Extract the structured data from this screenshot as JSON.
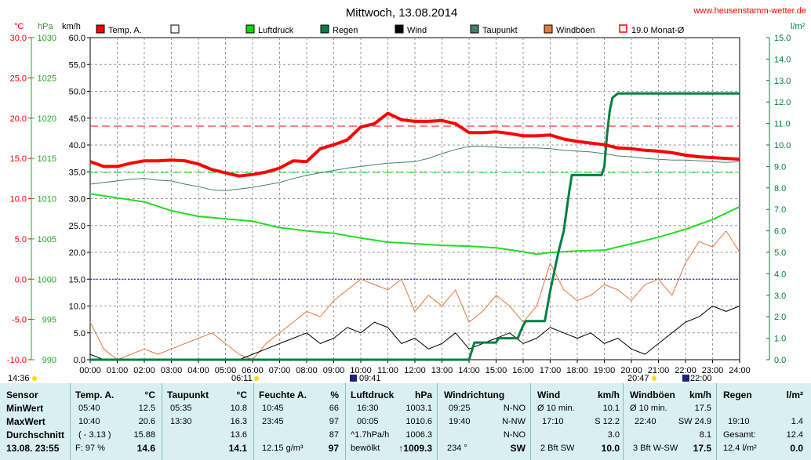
{
  "header": {
    "title": "Mittwoch, 13.08.2014",
    "website": "www.heusenstamm-wetter.de"
  },
  "units": {
    "temp": "°C",
    "pressure": "hPa",
    "wind": "km/h",
    "rain": "l/m²"
  },
  "legend": [
    {
      "label": "Temp. A.",
      "color": "#ff0000",
      "type": "box"
    },
    {
      "label": "",
      "color": "#ffffff",
      "type": "box"
    },
    {
      "label": "Luftdruck",
      "color": "#00dd00",
      "type": "box"
    },
    {
      "label": "Regen",
      "color": "#008040",
      "type": "box"
    },
    {
      "label": "Wind",
      "color": "#000000",
      "type": "box"
    },
    {
      "label": "Taupunkt",
      "color": "#40806f",
      "type": "box"
    },
    {
      "label": "Windböen",
      "color": "#e8773a",
      "type": "box"
    },
    {
      "label": "19.0 Monat-Ø",
      "color": "#ff0000",
      "type": "outline"
    }
  ],
  "markers": {
    "sunrise": "06:11",
    "sunset": "20:47",
    "moonrise": "09:41",
    "moonset": "22:00",
    "time_left": "14:36"
  },
  "colors": {
    "temp": "#ff0000",
    "pressure": "#22dd22",
    "rain": "#008040",
    "wind": "#000000",
    "dew": "#40806f",
    "gust": "#e8773a",
    "accent_left": "#ff0000",
    "accent_pressure": "#22aa22",
    "accent_rain": "#008040",
    "panel": "#d9f0f3"
  },
  "chart_data": {
    "type": "line",
    "title": "Mittwoch, 13.08.2014",
    "x_ticks": [
      "00:00",
      "01:00",
      "02:00",
      "03:00",
      "04:00",
      "05:00",
      "06:00",
      "07:00",
      "08:00",
      "09:00",
      "10:00",
      "11:00",
      "12:00",
      "13:00",
      "14:00",
      "15:00",
      "16:00",
      "17:00",
      "18:00",
      "19:00",
      "20:00",
      "21:00",
      "22:00",
      "23:00",
      "24:00"
    ],
    "axes": {
      "temp": {
        "unit": "°C",
        "ylim": [
          -10,
          30
        ],
        "ticks": [
          "30.0",
          "25.0",
          "20.0",
          "15.0",
          "10.0",
          "5.0",
          "0.0",
          "-5.0",
          "-10.0"
        ]
      },
      "pressure": {
        "unit": "hPa",
        "ylim": [
          990,
          1030
        ],
        "ticks": [
          "1030",
          "1025",
          "1020",
          "1015",
          "1010",
          "1005",
          "1000",
          "995",
          "990"
        ]
      },
      "wind": {
        "unit": "km/h",
        "ylim": [
          0,
          60
        ],
        "ticks": [
          "60.0",
          "55.0",
          "50.0",
          "45.0",
          "40.0",
          "35.0",
          "30.0",
          "25.0",
          "20.0",
          "15.0",
          "10.0",
          "5.0",
          "0.0"
        ]
      },
      "rain": {
        "unit": "l/m²",
        "ylim": [
          0,
          15
        ],
        "ticks": [
          "15.0",
          "14.0",
          "13.0",
          "12.0",
          "11.0",
          "10.0",
          "9.0",
          "8.0",
          "7.0",
          "6.0",
          "5.0",
          "4.0",
          "3.0",
          "2.0",
          "1.0",
          "0.0"
        ]
      }
    },
    "reference_lines": [
      {
        "name": "19.0 Monat-Ø",
        "axis": "temp",
        "value": 19.0,
        "style": "dashed",
        "color": "#ff0000"
      },
      {
        "axis": "pressure",
        "value": 1013.25,
        "style": "dashed",
        "color": "#22dd22"
      },
      {
        "axis": "temp",
        "value": 0.0,
        "style": "dotted",
        "color": "#0000ff"
      }
    ],
    "series": [
      {
        "name": "Temp. A.",
        "axis": "temp",
        "color": "#ff0000",
        "x": [
          0,
          0.5,
          1,
          1.5,
          2,
          2.5,
          3,
          3.5,
          4,
          4.5,
          5,
          5.5,
          6,
          6.5,
          7,
          7.5,
          8,
          8.5,
          9,
          9.5,
          10,
          10.5,
          11,
          11.5,
          12,
          12.5,
          13,
          13.5,
          14,
          14.5,
          15,
          15.5,
          16,
          16.5,
          17,
          17.5,
          18,
          18.5,
          19,
          19.5,
          20,
          20.5,
          21,
          21.5,
          22,
          22.5,
          23,
          23.5,
          24
        ],
        "values": [
          14.6,
          14.0,
          14.0,
          14.4,
          14.7,
          14.7,
          14.8,
          14.7,
          14.3,
          13.6,
          13.2,
          12.8,
          13.0,
          13.3,
          13.8,
          14.7,
          14.6,
          16.2,
          16.7,
          17.3,
          18.9,
          19.3,
          20.6,
          19.8,
          19.6,
          19.6,
          19.7,
          19.3,
          18.2,
          18.2,
          18.3,
          18.1,
          17.8,
          17.8,
          17.9,
          17.4,
          17.1,
          16.9,
          16.7,
          16.3,
          16.2,
          16.0,
          15.9,
          15.7,
          15.4,
          15.2,
          15.1,
          15.0,
          14.9
        ]
      },
      {
        "name": "Taupunkt",
        "axis": "temp",
        "color": "#40806f",
        "x": [
          0,
          0.5,
          1,
          1.5,
          2,
          2.5,
          3,
          3.5,
          4,
          4.5,
          5,
          5.5,
          6,
          6.5,
          7,
          7.5,
          8,
          8.5,
          9,
          9.5,
          10,
          10.5,
          11,
          11.5,
          12,
          12.5,
          13,
          13.5,
          14,
          14.5,
          15,
          15.5,
          16,
          16.5,
          17,
          17.5,
          18,
          18.5,
          19,
          19.5,
          20,
          20.5,
          21,
          21.5,
          22,
          22.5,
          23,
          23.5,
          24
        ],
        "values": [
          11.8,
          12.0,
          12.2,
          12.4,
          12.5,
          12.3,
          12.2,
          11.8,
          11.5,
          11.1,
          11.0,
          11.2,
          11.4,
          11.7,
          12.0,
          12.5,
          12.9,
          13.2,
          13.5,
          13.8,
          14.0,
          14.2,
          14.4,
          14.5,
          14.6,
          15.0,
          15.6,
          16.1,
          16.5,
          16.5,
          16.4,
          16.3,
          16.3,
          16.3,
          16.2,
          16.0,
          15.9,
          15.8,
          15.6,
          15.3,
          15.2,
          15.0,
          14.9,
          14.8,
          14.8,
          14.7,
          14.6,
          14.5,
          14.6
        ]
      },
      {
        "name": "Luftdruck",
        "axis": "pressure",
        "color": "#22dd22",
        "x": [
          0,
          1,
          2,
          3,
          4,
          5,
          6,
          7,
          8,
          9,
          10,
          11,
          12,
          13,
          14,
          15,
          16,
          16.5,
          17,
          18,
          19,
          20,
          21,
          22,
          23,
          24
        ],
        "values": [
          1010.6,
          1010.1,
          1009.6,
          1008.5,
          1007.8,
          1007.5,
          1007.2,
          1006.4,
          1006.0,
          1005.7,
          1005.1,
          1004.6,
          1004.4,
          1004.2,
          1004.1,
          1003.9,
          1003.4,
          1003.1,
          1003.3,
          1003.5,
          1003.6,
          1004.4,
          1005.2,
          1006.2,
          1007.4,
          1009.0
        ]
      },
      {
        "name": "Regen",
        "axis": "rain",
        "color": "#008040",
        "x": [
          0,
          13.5,
          14.0,
          14.2,
          15.0,
          15.1,
          15.8,
          16.0,
          16.1,
          16.3,
          16.8,
          17.0,
          17.3,
          17.5,
          17.7,
          17.8,
          18.2,
          18.9,
          19.0,
          19.1,
          19.2,
          19.3,
          19.5,
          19.6,
          24
        ],
        "values": [
          0.0,
          0.0,
          0.0,
          0.8,
          0.8,
          1.0,
          1.0,
          1.6,
          1.8,
          1.8,
          1.8,
          3.2,
          5.0,
          6.0,
          7.8,
          8.6,
          8.6,
          8.6,
          9.0,
          10.5,
          11.6,
          12.2,
          12.4,
          12.4,
          12.4
        ]
      },
      {
        "name": "Wind",
        "axis": "wind",
        "color": "#000000",
        "x": [
          0,
          0.5,
          1,
          1.5,
          2,
          2.5,
          3,
          3.5,
          4,
          4.5,
          5,
          5.5,
          6,
          6.5,
          7,
          7.5,
          8,
          8.5,
          9,
          9.5,
          10,
          10.5,
          11,
          11.5,
          12,
          12.5,
          13,
          13.5,
          14,
          14.5,
          15,
          15.5,
          16,
          16.5,
          17,
          17.5,
          18,
          18.5,
          19,
          19.5,
          20,
          20.5,
          21,
          21.5,
          22,
          22.5,
          23,
          23.5,
          24
        ],
        "values": [
          1,
          0,
          0,
          0,
          0,
          0,
          0,
          0,
          0,
          0,
          0,
          0,
          1,
          2,
          3,
          4,
          5,
          3,
          4,
          6,
          5,
          7,
          6,
          3,
          4,
          2,
          3,
          5,
          2,
          3,
          4,
          5,
          3,
          4,
          6,
          5,
          4,
          5,
          3,
          4,
          2,
          1,
          3,
          5,
          7,
          8,
          10,
          9,
          10
        ]
      },
      {
        "name": "Windböen",
        "axis": "wind",
        "color": "#e8773a",
        "x": [
          0,
          0.5,
          1,
          1.5,
          2,
          2.5,
          3,
          3.5,
          4,
          4.5,
          5,
          5.5,
          6,
          6.5,
          7,
          7.5,
          8,
          8.5,
          9,
          9.5,
          10,
          10.5,
          11,
          11.5,
          12,
          12.5,
          13,
          13.5,
          14,
          14.5,
          15,
          15.5,
          16,
          16.5,
          17,
          17.5,
          18,
          18.5,
          19,
          19.5,
          20,
          20.5,
          21,
          21.5,
          22,
          22.5,
          23,
          23.5,
          24
        ],
        "values": [
          7,
          2,
          0,
          1,
          2,
          1,
          2,
          3,
          4,
          5,
          3,
          1,
          0,
          3,
          5,
          7,
          9,
          8,
          11,
          13,
          15,
          14,
          13,
          15,
          9,
          12,
          10,
          13,
          7,
          9,
          12,
          10,
          7,
          10,
          18,
          13,
          11,
          12,
          14,
          13,
          11,
          14,
          15,
          12,
          18,
          22,
          21,
          24,
          20
        ]
      }
    ]
  },
  "stats": {
    "sensor": {
      "header": "Sensor",
      "rows": [
        "MinWert",
        "MaxWert",
        "Durchschnitt"
      ],
      "footer": "13.08. 23:55"
    },
    "temp": {
      "header": "Temp. A.",
      "unit": "°C",
      "min_time": "05:40",
      "min": "12.5",
      "max_time": "10:40",
      "max": "20.6",
      "avg_extra": "( - 3.13 )",
      "avg": "15.88",
      "footer_left": "F: 97 %",
      "footer_val": "14.6"
    },
    "dew": {
      "header": "Taupunkt",
      "unit": "°C",
      "min_time": "05:35",
      "min": "10.8",
      "max_time": "13:30",
      "max": "16.3",
      "avg": "13.6",
      "footer_val": "14.1"
    },
    "hum": {
      "header": "Feuchte A.",
      "unit": "%",
      "min_time": "10:45",
      "min": "66",
      "max_time": "23:45",
      "max": "97",
      "avg": "87",
      "footer_left": "12.15 g/m³",
      "footer_val": "97"
    },
    "press": {
      "header": "Luftdruck",
      "unit": "hPa",
      "min_time": "16:30",
      "min": "1003.1",
      "max_time": "00:05",
      "max": "1010.6",
      "avg_extra": "^1.7hPa/h",
      "avg": "1006.3",
      "footer_left": "bewölkt",
      "footer_val": "↑1009.3"
    },
    "dir": {
      "header": "Windrichtung",
      "min_time": "09:25",
      "min": "N-NO",
      "max_time": "19:40",
      "max": "N-NW",
      "avg": "N-NO",
      "footer_left": "234 °",
      "footer_val": "SW"
    },
    "wind": {
      "header": "Wind",
      "unit": "km/h",
      "min_time": "Ø 10 min.",
      "min": "10.1",
      "max_time": "17:10",
      "max": "S 12.2",
      "avg": "3.0",
      "footer_left": "2 Bft SW",
      "footer_val": "10.0"
    },
    "gust": {
      "header": "Windböen",
      "unit": "km/h",
      "min_time": "Ø 10 min.",
      "min": "17.5",
      "max_time": "22:40",
      "max": "SW 24.9",
      "avg": "8.1",
      "footer_left": "3 Bft W-SW",
      "footer_val": "17.5"
    },
    "rain": {
      "header": "Regen",
      "unit": "l/m²",
      "min_time": "",
      "min": "",
      "max_time": "19:10",
      "max": "1.4",
      "avg_extra": "Gesamt:",
      "avg": "12.4",
      "footer_left": "12.4 l/m²",
      "footer_val": "0.0"
    }
  }
}
